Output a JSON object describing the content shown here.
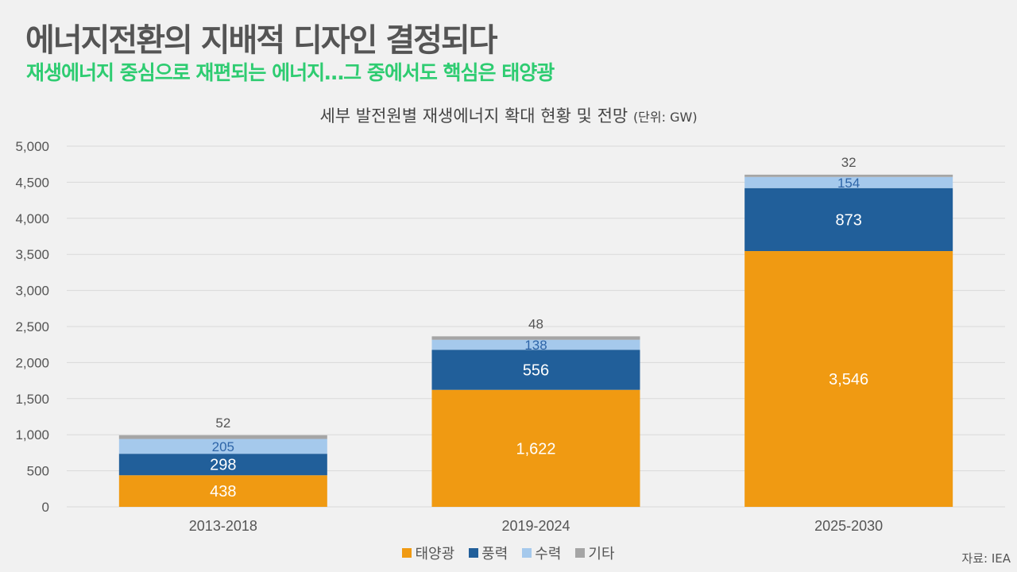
{
  "header": {
    "title": "에너지전환의 지배적 디자인 결정되다",
    "subtitle": "재생에너지 중심으로 재편되는 에너지…그 중에서도 핵심은 태양광"
  },
  "source": "자료: IEA",
  "chart_data": {
    "type": "bar",
    "stacked": true,
    "title": "세부 발전원별 재생에너지 확대 현황 및 전망",
    "unit_label": "(단위: GW)",
    "xlabel": "",
    "ylabel": "",
    "ylim": [
      0,
      5000
    ],
    "yticks": [
      0,
      500,
      1000,
      1500,
      2000,
      2500,
      3000,
      3500,
      4000,
      4500,
      5000
    ],
    "ytick_labels": [
      "0",
      "500",
      "1,000",
      "1,500",
      "2,000",
      "2,500",
      "3,000",
      "3,500",
      "4,000",
      "4,500",
      "5,000"
    ],
    "grid": true,
    "legend_position": "bottom",
    "categories": [
      "2013-2018",
      "2019-2024",
      "2025-2030"
    ],
    "series": [
      {
        "name": "태양광",
        "color": "#f09a12",
        "label_color": "#ffffff",
        "values": [
          438,
          1622,
          3546
        ],
        "labels": [
          "438",
          "1,622",
          "3,546"
        ]
      },
      {
        "name": "풍력",
        "color": "#215f9a",
        "label_color": "#ffffff",
        "values": [
          298,
          556,
          873
        ],
        "labels": [
          "298",
          "556",
          "873"
        ]
      },
      {
        "name": "수력",
        "color": "#a5c9ec",
        "label_color": "#2e65a8",
        "values": [
          205,
          138,
          154
        ],
        "labels": [
          "205",
          "138",
          "154"
        ]
      },
      {
        "name": "기타",
        "color": "#a5a5a5",
        "label_color": "#555555",
        "values": [
          52,
          48,
          32
        ],
        "labels": [
          "52",
          "48",
          "32"
        ]
      }
    ]
  }
}
